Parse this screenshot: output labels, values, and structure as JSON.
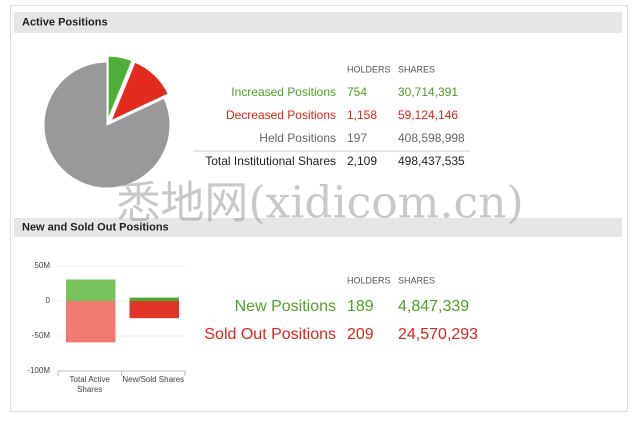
{
  "watermark": "悉地网(xidicom.cn)",
  "active_positions": {
    "title": "Active Positions",
    "columns": [
      "HOLDERS",
      "SHARES"
    ],
    "rows": [
      {
        "label": "Increased Positions",
        "color": "#4f9e2a",
        "holders": 754,
        "shares": {
          "value": 30714391,
          "label": "30,714,391"
        }
      },
      {
        "label": "Decreased Positions",
        "color": "#dd2418",
        "holders": {
          "value": 1158,
          "label": "1,158"
        },
        "shares": {
          "value": 59124146,
          "label": "59,124,146"
        }
      },
      {
        "label": "Held Positions",
        "color": "#666666",
        "holders": 197,
        "shares": {
          "value": 408598998,
          "label": "408,598,998"
        }
      },
      {
        "label": "Total Institutional Shares",
        "color": "#222222",
        "holders": {
          "value": 2109,
          "label": "2,109"
        },
        "shares": {
          "value": 498437535,
          "label": "498,437,535"
        }
      }
    ]
  },
  "new_sold": {
    "title": "New and Sold Out Positions",
    "columns": [
      "HOLDERS",
      "SHARES"
    ],
    "rows": [
      {
        "label": "New Positions",
        "color": "#4f9e2a",
        "holders": 189,
        "shares": {
          "value": 4847339,
          "label": "4,847,339"
        }
      },
      {
        "label": "Sold Out Positions",
        "color": "#dd2418",
        "holders": 209,
        "shares": {
          "value": 24570293,
          "label": "24,570,293"
        }
      }
    ]
  },
  "chart_data": [
    {
      "type": "pie",
      "values": [
        30714391,
        59124146,
        408598998
      ],
      "colors": [
        "#4fae3a",
        "#e32a1f",
        "#999999"
      ],
      "explode": [
        true,
        true,
        false
      ]
    },
    {
      "type": "bar",
      "stacked": true,
      "categories": [
        "Total Active Shares",
        "New/Sold Shares"
      ],
      "series": [
        {
          "color": [
            "#78c35c",
            "#4ea634"
          ],
          "values": [
            30714391,
            4847339
          ]
        },
        {
          "color": [
            "#f17a70",
            "#e3342a"
          ],
          "values": [
            -59124146,
            -24570293
          ]
        }
      ],
      "ylim": [
        -100000000,
        50000000
      ],
      "yticks": [
        {
          "value": 50000000,
          "label": "50M"
        },
        0,
        {
          "value": -50000000,
          "label": "-50M"
        },
        {
          "value": -100000000,
          "label": "-100M"
        }
      ],
      "grid": true
    }
  ]
}
